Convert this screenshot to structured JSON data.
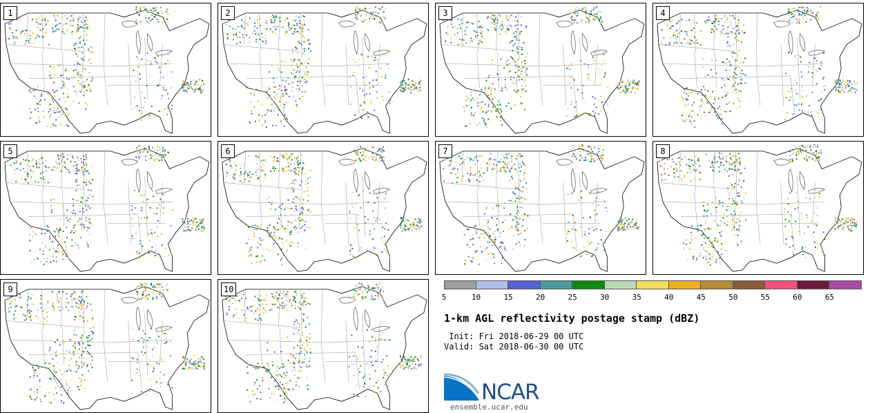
{
  "panels": [
    {
      "number": "1"
    },
    {
      "number": "2"
    },
    {
      "number": "3"
    },
    {
      "number": "4"
    },
    {
      "number": "5"
    },
    {
      "number": "6"
    },
    {
      "number": "7"
    },
    {
      "number": "8"
    },
    {
      "number": "9"
    },
    {
      "number": "10"
    }
  ],
  "colorbar": {
    "ticks": [
      "5",
      "10",
      "15",
      "20",
      "25",
      "30",
      "35",
      "40",
      "45",
      "50",
      "55",
      "60",
      "65"
    ],
    "colors": [
      "#9e9e9e",
      "#b4bde9",
      "#5a5fd8",
      "#4c9a9c",
      "#0e8a12",
      "#b8d9b8",
      "#f0dc60",
      "#eeae22",
      "#b88a3a",
      "#8a5a3a",
      "#f4527e",
      "#6b1a3a",
      "#a84aa8"
    ]
  },
  "title": "1-km AGL reflectivity postage stamp (dBZ)",
  "init": " Init: Fri 2018-06-29 00 UTC",
  "valid": "Valid: Sat 2018-06-30 00 UTC",
  "logo": {
    "name": "NCAR",
    "url": "ensemble.ucar.edu"
  }
}
